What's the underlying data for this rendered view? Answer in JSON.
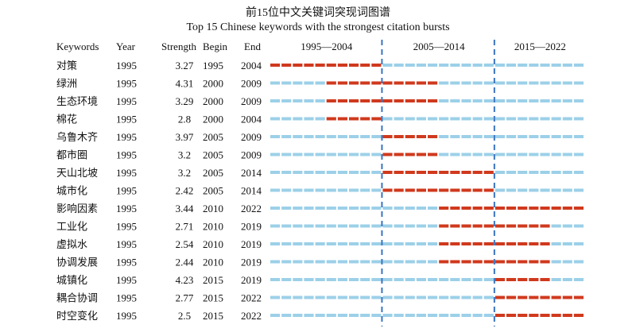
{
  "chart_data": {
    "type": "table",
    "title": "前15位中文关键词突现词图谱",
    "subtitle": "Top 15 Chinese keywords with the strongest citation bursts",
    "columns": [
      "Keywords",
      "Year",
      "Strength",
      "Begin",
      "End"
    ],
    "periods": [
      "1995—2004",
      "2005—2014",
      "2015—2022"
    ],
    "period_bounds": [
      [
        1995,
        2004
      ],
      [
        2005,
        2014
      ],
      [
        2015,
        2022
      ]
    ],
    "timeline_start": 1995,
    "timeline_end": 2022,
    "rows": [
      {
        "keyword": "对策",
        "year": "1995",
        "strength": "3.27",
        "begin": "1995",
        "end": "2004"
      },
      {
        "keyword": "绿洲",
        "year": "1995",
        "strength": "4.31",
        "begin": "2000",
        "end": "2009"
      },
      {
        "keyword": "生态环境",
        "year": "1995",
        "strength": "3.29",
        "begin": "2000",
        "end": "2009"
      },
      {
        "keyword": "棉花",
        "year": "1995",
        "strength": "2.8",
        "begin": "2000",
        "end": "2004"
      },
      {
        "keyword": "乌鲁木齐",
        "year": "1995",
        "strength": "3.97",
        "begin": "2005",
        "end": "2009"
      },
      {
        "keyword": "都市圈",
        "year": "1995",
        "strength": "3.2",
        "begin": "2005",
        "end": "2009"
      },
      {
        "keyword": "天山北坡",
        "year": "1995",
        "strength": "3.2",
        "begin": "2005",
        "end": "2014"
      },
      {
        "keyword": "城市化",
        "year": "1995",
        "strength": "2.42",
        "begin": "2005",
        "end": "2014"
      },
      {
        "keyword": "影响因素",
        "year": "1995",
        "strength": "3.44",
        "begin": "2010",
        "end": "2022"
      },
      {
        "keyword": "工业化",
        "year": "1995",
        "strength": "2.71",
        "begin": "2010",
        "end": "2019"
      },
      {
        "keyword": "虚拟水",
        "year": "1995",
        "strength": "2.54",
        "begin": "2010",
        "end": "2019"
      },
      {
        "keyword": "协调发展",
        "year": "1995",
        "strength": "2.44",
        "begin": "2010",
        "end": "2019"
      },
      {
        "keyword": "城镇化",
        "year": "1995",
        "strength": "4.23",
        "begin": "2015",
        "end": "2019"
      },
      {
        "keyword": "耦合协调",
        "year": "1995",
        "strength": "2.77",
        "begin": "2015",
        "end": "2022"
      },
      {
        "keyword": "时空变化",
        "year": "1995",
        "strength": "2.5",
        "begin": "2015",
        "end": "2022"
      }
    ],
    "colors": {
      "burst": "#d0391d",
      "baseline": "#9cd0e8",
      "divider": "#3a74c0"
    }
  }
}
